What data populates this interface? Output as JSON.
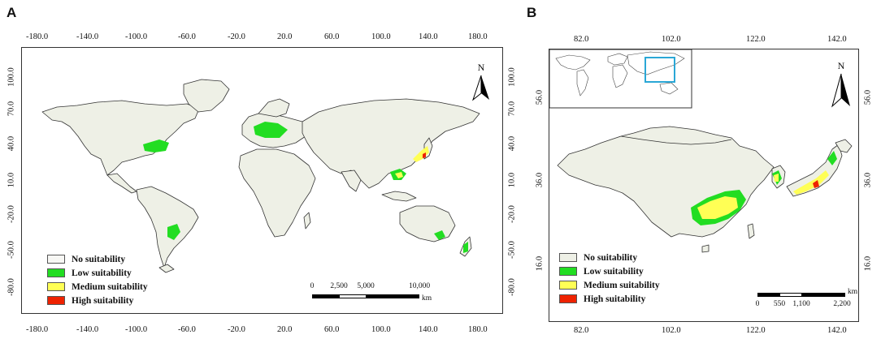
{
  "panels": {
    "a": {
      "letter": "A",
      "x_ticks_top": [
        "-180.0",
        "-140.0",
        "-100.0",
        "-60.0",
        "-20.0",
        "20.0",
        "60.0",
        "100.0",
        "140.0",
        "180.0"
      ],
      "x_ticks_bottom": [
        "-180.0",
        "-140.0",
        "-100.0",
        "-60.0",
        "-20.0",
        "20.0",
        "60.0",
        "100.0",
        "140.0",
        "180.0"
      ],
      "y_ticks": [
        "100.0",
        "70.0",
        "40.0",
        "10.0",
        "-20.0",
        "-50.0",
        "-80.0"
      ],
      "north": "N",
      "scale": {
        "labels": [
          "0",
          "2,500",
          "5,000",
          "10,000"
        ],
        "unit": "km"
      }
    },
    "b": {
      "letter": "B",
      "x_ticks_top": [
        "82.0",
        "102.0",
        "122.0",
        "142.0"
      ],
      "x_ticks_bottom": [
        "82.0",
        "102.0",
        "122.0",
        "142.0"
      ],
      "y_ticks": [
        "56.0",
        "36.0",
        "16.0"
      ],
      "north": "N",
      "scale": {
        "labels": [
          "0",
          "550",
          "1,100",
          "2,200"
        ],
        "unit": "km"
      }
    }
  },
  "legend": [
    {
      "label": "No suitability",
      "color": "#eef0e6"
    },
    {
      "label": "Low suitability",
      "color": "#22dd22"
    },
    {
      "label": "Medium suitability",
      "color": "#ffff55"
    },
    {
      "label": "High suitability",
      "color": "#ee2200"
    }
  ],
  "colors": {
    "land": "#eef0e6",
    "border": "#333333",
    "inset_box": "#2aa7d6"
  }
}
